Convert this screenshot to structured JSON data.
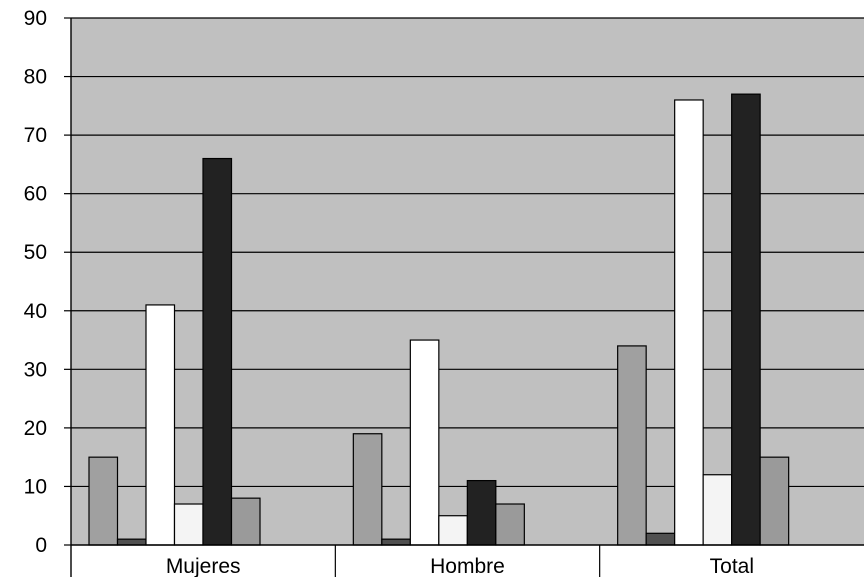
{
  "chart_data": {
    "type": "bar",
    "categories": [
      "Mujeres",
      "Hombre",
      "Total"
    ],
    "series": [
      {
        "values": [
          15,
          19,
          34
        ],
        "color": "#a0a0a0"
      },
      {
        "values": [
          1,
          1,
          2
        ],
        "color": "#505050"
      },
      {
        "values": [
          41,
          35,
          76
        ],
        "color": "#ffffff"
      },
      {
        "values": [
          7,
          5,
          12
        ],
        "color": "#f4f4f4"
      },
      {
        "values": [
          66,
          11,
          77
        ],
        "color": "#222222"
      },
      {
        "values": [
          8,
          7,
          15
        ],
        "color": "#9a9a9a"
      }
    ],
    "title": "",
    "xlabel": "",
    "ylabel": "",
    "ylim": [
      0,
      90
    ],
    "yticks": [
      "0",
      "10",
      "20",
      "30",
      "40",
      "50",
      "60",
      "70",
      "80",
      "90"
    ],
    "grid": true,
    "legend": "none",
    "plot_background": "#c0c0c0"
  }
}
